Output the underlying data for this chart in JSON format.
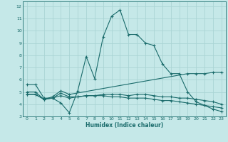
{
  "xlabel": "Humidex (Indice chaleur)",
  "xlim": [
    -0.5,
    23.5
  ],
  "ylim": [
    3,
    12.4
  ],
  "yticks": [
    3,
    4,
    5,
    6,
    7,
    8,
    9,
    10,
    11,
    12
  ],
  "xticks": [
    0,
    1,
    2,
    3,
    4,
    5,
    6,
    7,
    8,
    9,
    10,
    11,
    12,
    13,
    14,
    15,
    16,
    17,
    18,
    19,
    20,
    21,
    22,
    23
  ],
  "bg_color": "#c5e8e8",
  "grid_color": "#aad4d4",
  "line_color": "#1a6b6b",
  "lines": [
    {
      "x": [
        0,
        1,
        2,
        3,
        4,
        5,
        6,
        7,
        8,
        9,
        10,
        11,
        12,
        13,
        14,
        15,
        16,
        17,
        18,
        19,
        20,
        21,
        22,
        23
      ],
      "y": [
        5.6,
        5.6,
        4.5,
        4.5,
        4.1,
        3.3,
        5.1,
        7.9,
        6.1,
        9.5,
        11.2,
        11.7,
        9.7,
        9.7,
        9.0,
        8.8,
        7.3,
        6.5,
        6.5,
        5.0,
        4.2,
        3.9,
        3.6,
        3.4
      ]
    },
    {
      "x": [
        0,
        1,
        2,
        3,
        4,
        5,
        19,
        20,
        21,
        22,
        23
      ],
      "y": [
        5.0,
        5.0,
        4.4,
        4.6,
        5.1,
        4.8,
        6.5,
        6.5,
        6.5,
        6.6,
        6.6
      ]
    },
    {
      "x": [
        0,
        1,
        2,
        3,
        4,
        5,
        6,
        7,
        8,
        9,
        10,
        11,
        12,
        13,
        14,
        15,
        16,
        17,
        18,
        19,
        20,
        21,
        22,
        23
      ],
      "y": [
        4.8,
        4.8,
        4.4,
        4.5,
        4.7,
        4.5,
        4.6,
        4.7,
        4.7,
        4.7,
        4.6,
        4.6,
        4.5,
        4.5,
        4.5,
        4.4,
        4.3,
        4.3,
        4.2,
        4.1,
        4.0,
        3.9,
        3.8,
        3.7
      ]
    },
    {
      "x": [
        0,
        1,
        2,
        3,
        4,
        5,
        6,
        7,
        8,
        9,
        10,
        11,
        12,
        13,
        14,
        15,
        16,
        17,
        18,
        19,
        20,
        21,
        22,
        23
      ],
      "y": [
        4.8,
        4.8,
        4.4,
        4.5,
        4.9,
        4.6,
        4.6,
        4.7,
        4.7,
        4.8,
        4.8,
        4.8,
        4.7,
        4.8,
        4.8,
        4.7,
        4.6,
        4.6,
        4.5,
        4.5,
        4.4,
        4.3,
        4.2,
        4.0
      ]
    }
  ]
}
